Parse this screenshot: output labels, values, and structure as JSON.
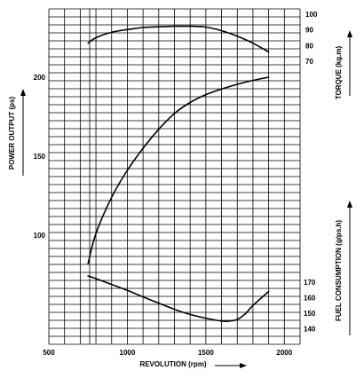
{
  "chart_data": {
    "type": "line",
    "title": "",
    "xlabel": "REVOLUTION (rpm)",
    "xlim": [
      500,
      2100
    ],
    "x_ticks": [
      500,
      1000,
      1500,
      2000
    ],
    "grid": true,
    "axes": {
      "power": {
        "label": "POWER OUTPUT (ps)",
        "ticks": [
          100,
          150,
          200
        ],
        "side": "left"
      },
      "torque": {
        "label": "TORQUE (kg.m)",
        "ticks": [
          70,
          80,
          90,
          100
        ],
        "side": "right-top"
      },
      "fuel": {
        "label": "FUEL CONSUMPTION (g/ps.h)",
        "ticks": [
          140,
          150,
          160,
          170
        ],
        "side": "right-bottom"
      }
    },
    "series": [
      {
        "axis": "torque",
        "x": [
          750,
          800,
          900,
          1000,
          1100,
          1200,
          1300,
          1400,
          1500,
          1600,
          1700,
          1800,
          1900
        ],
        "values": [
          81.5,
          85.0,
          88.5,
          90.2,
          91.5,
          92.0,
          92.3,
          92.3,
          91.8,
          89.5,
          86.0,
          81.5,
          76.0
        ]
      },
      {
        "axis": "power",
        "x": [
          750,
          800,
          900,
          1000,
          1100,
          1200,
          1300,
          1400,
          1500,
          1600,
          1700,
          1800,
          1900
        ],
        "values": [
          82,
          101,
          124,
          141,
          155,
          167,
          177,
          184,
          189,
          192.5,
          195.5,
          198,
          200
        ]
      },
      {
        "axis": "fuel",
        "x": [
          750,
          800,
          900,
          1000,
          1100,
          1200,
          1300,
          1400,
          1500,
          1600,
          1650,
          1700,
          1750,
          1800,
          1900
        ],
        "values": [
          174,
          172.3,
          168.5,
          164.7,
          160.5,
          156.5,
          152.5,
          149.2,
          146.8,
          145,
          145,
          146,
          149.5,
          155,
          164
        ]
      }
    ]
  }
}
